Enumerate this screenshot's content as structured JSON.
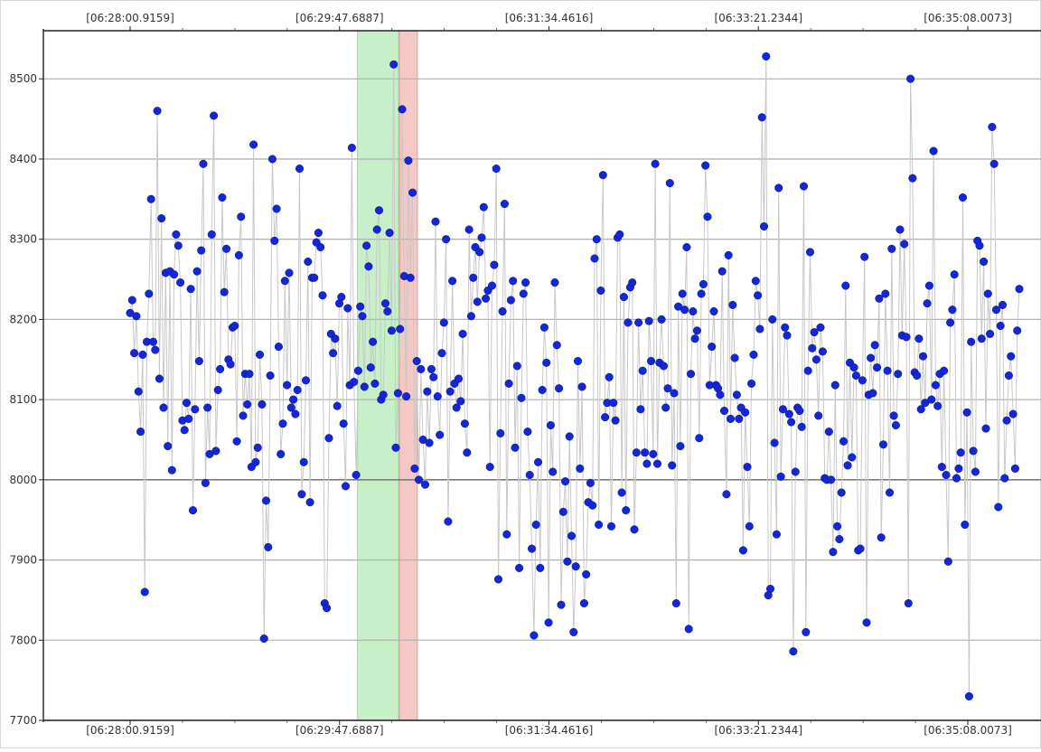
{
  "chart_data": {
    "type": "scatter",
    "connected": true,
    "title": "",
    "xlabel": "",
    "ylabel": "",
    "ylim": [
      7700,
      8560
    ],
    "y_ticks": [
      7700,
      7800,
      7900,
      8000,
      8100,
      8200,
      8300,
      8400,
      8500
    ],
    "x_tick_labels": [
      "[06:28:00.9159]",
      "[06:29:47.6887]",
      "[06:31:34.4616]",
      "[06:33:21.2344]",
      "[06:35:08.0073]"
    ],
    "grid": true,
    "colors": {
      "point": "#1426d6",
      "line": "#c8c8c8",
      "green_band": "#c8f0c8",
      "red_band": "#f4c8c4"
    },
    "highlight_bands": [
      {
        "color": "green",
        "from_index": 110,
        "to_index": 127
      },
      {
        "color": "red",
        "from_index": 130,
        "to_index": 136
      }
    ],
    "values": [
      8208,
      8224,
      8158,
      8204,
      8110,
      8060,
      8156,
      7860,
      8172,
      8232,
      8350,
      8172,
      8162,
      8460,
      8126,
      8326,
      8090,
      8258,
      8042,
      8260,
      8012,
      8256,
      8306,
      8292,
      8246,
      8074,
      8062,
      8096,
      8076,
      8238,
      7962,
      8088,
      8260,
      8148,
      8286,
      8394,
      7996,
      8090,
      8032,
      8306,
      8454,
      8036,
      8112,
      8138,
      8352,
      8234,
      8288,
      8150,
      8144,
      8190,
      8192,
      8048,
      8280,
      8328,
      8080,
      8132,
      8094,
      8132,
      8016,
      8418,
      8022,
      8040,
      8156,
      8094,
      7802,
      7974,
      7916,
      8130,
      8400,
      8298,
      8338,
      8166,
      8032,
      8070,
      8248,
      8118,
      8258,
      8090,
      8100,
      8082,
      8112,
      8388,
      7982,
      8022,
      8124,
      8272,
      7972,
      8252,
      8252,
      8296,
      8308,
      8290,
      8230,
      7846,
      7840,
      8052,
      8182,
      8158,
      8176,
      8092,
      8220,
      8228,
      8070,
      7992,
      8214,
      8118,
      8414,
      8122,
      8006,
      8136,
      8216,
      8204,
      8116,
      8292,
      8266,
      8140,
      8172,
      8120,
      8312,
      8336,
      8100,
      8106,
      8220,
      8210,
      8308,
      8186,
      8518,
      8040,
      8108,
      8188,
      8462,
      8254,
      8104,
      8398,
      8252,
      8358,
      8014,
      8148,
      8000,
      8138,
      8050,
      7994,
      8110,
      8046,
      8138,
      8128,
      8322,
      8104,
      8056,
      8158,
      8196,
      8300,
      7948,
      8110,
      8248,
      8120,
      8090,
      8126,
      8098,
      8182,
      8070,
      8034,
      8312,
      8204,
      8252,
      8290,
      8222,
      8284,
      8302,
      8340,
      8226,
      8236,
      8016,
      8242,
      8268,
      8388,
      7876,
      8058,
      8210,
      8344,
      7932,
      8120,
      8224,
      8248,
      8040,
      8142,
      7890,
      8102,
      8232,
      8246,
      8060,
      8006,
      7914,
      7806,
      7944,
      8022,
      7890,
      8112,
      8190,
      8146,
      7822,
      8068,
      8010,
      8246,
      8168,
      8114,
      7844,
      7960,
      7998,
      7898,
      8054,
      7930,
      7810,
      7892,
      8148,
      8014,
      8116,
      7846,
      7882,
      7972,
      7996,
      7968,
      8276,
      8300,
      7944,
      8236,
      8380,
      8078,
      8096,
      8128,
      7942,
      8096,
      8074,
      8302,
      8306,
      7984,
      8228,
      7962,
      8196,
      8240,
      8246,
      7938,
      8034,
      8196,
      8088,
      8136,
      8034,
      8020,
      8198,
      8148,
      8032,
      8394,
      8020,
      8146,
      8200,
      8142,
      8090,
      8114,
      8370,
      8018,
      8108,
      7846,
      8216,
      8042,
      8232,
      8212,
      8290,
      7814,
      8132,
      8210,
      8176,
      8186,
      8052,
      8232,
      8244,
      8392,
      8328,
      8118,
      8166,
      8210,
      8118,
      8114,
      8106,
      8260,
      8086,
      7982,
      8280,
      8076,
      8218,
      8152,
      8106,
      8076,
      8090,
      7912,
      8084,
      8016,
      7942,
      8120,
      8156,
      8248,
      8230,
      8188,
      8452,
      8316,
      8528,
      7856,
      7864,
      8200,
      8046,
      7932,
      8364,
      8004,
      8088,
      8190,
      8180,
      8082,
      8072,
      7786,
      8010,
      8090,
      8086,
      8066,
      8366,
      7810,
      8136,
      8284,
      8164,
      8184,
      8150,
      8080,
      8190,
      8160,
      8002,
      8000,
      8060,
      8000,
      7910,
      8118,
      7942,
      7926,
      7984,
      8048,
      8242,
      8018,
      8146,
      8028,
      8140,
      8130,
      7912,
      7914,
      8124,
      8278,
      7822,
      8106,
      8152,
      8108,
      8168,
      8140,
      8226,
      7928,
      8044,
      8232,
      8136,
      7984,
      8288,
      8080,
      8068,
      8132,
      8312,
      8180,
      8294,
      8178,
      7846,
      8500,
      8376,
      8134,
      8130,
      8176,
      8088,
      8154,
      8096,
      8220,
      8242,
      8100,
      8410,
      8118,
      8092,
      8132,
      8016,
      8136,
      8006,
      7898,
      8196,
      8212,
      8256,
      8002,
      8014,
      8034,
      8352,
      7944,
      8084,
      7730,
      8172,
      8036,
      8010,
      8298,
      8292,
      8176,
      8272,
      8064,
      8232,
      8182,
      8440,
      8394,
      8212,
      7966,
      8192,
      8218,
      8002,
      8074,
      8130,
      8154,
      8082,
      8014,
      8186,
      8238
    ]
  }
}
